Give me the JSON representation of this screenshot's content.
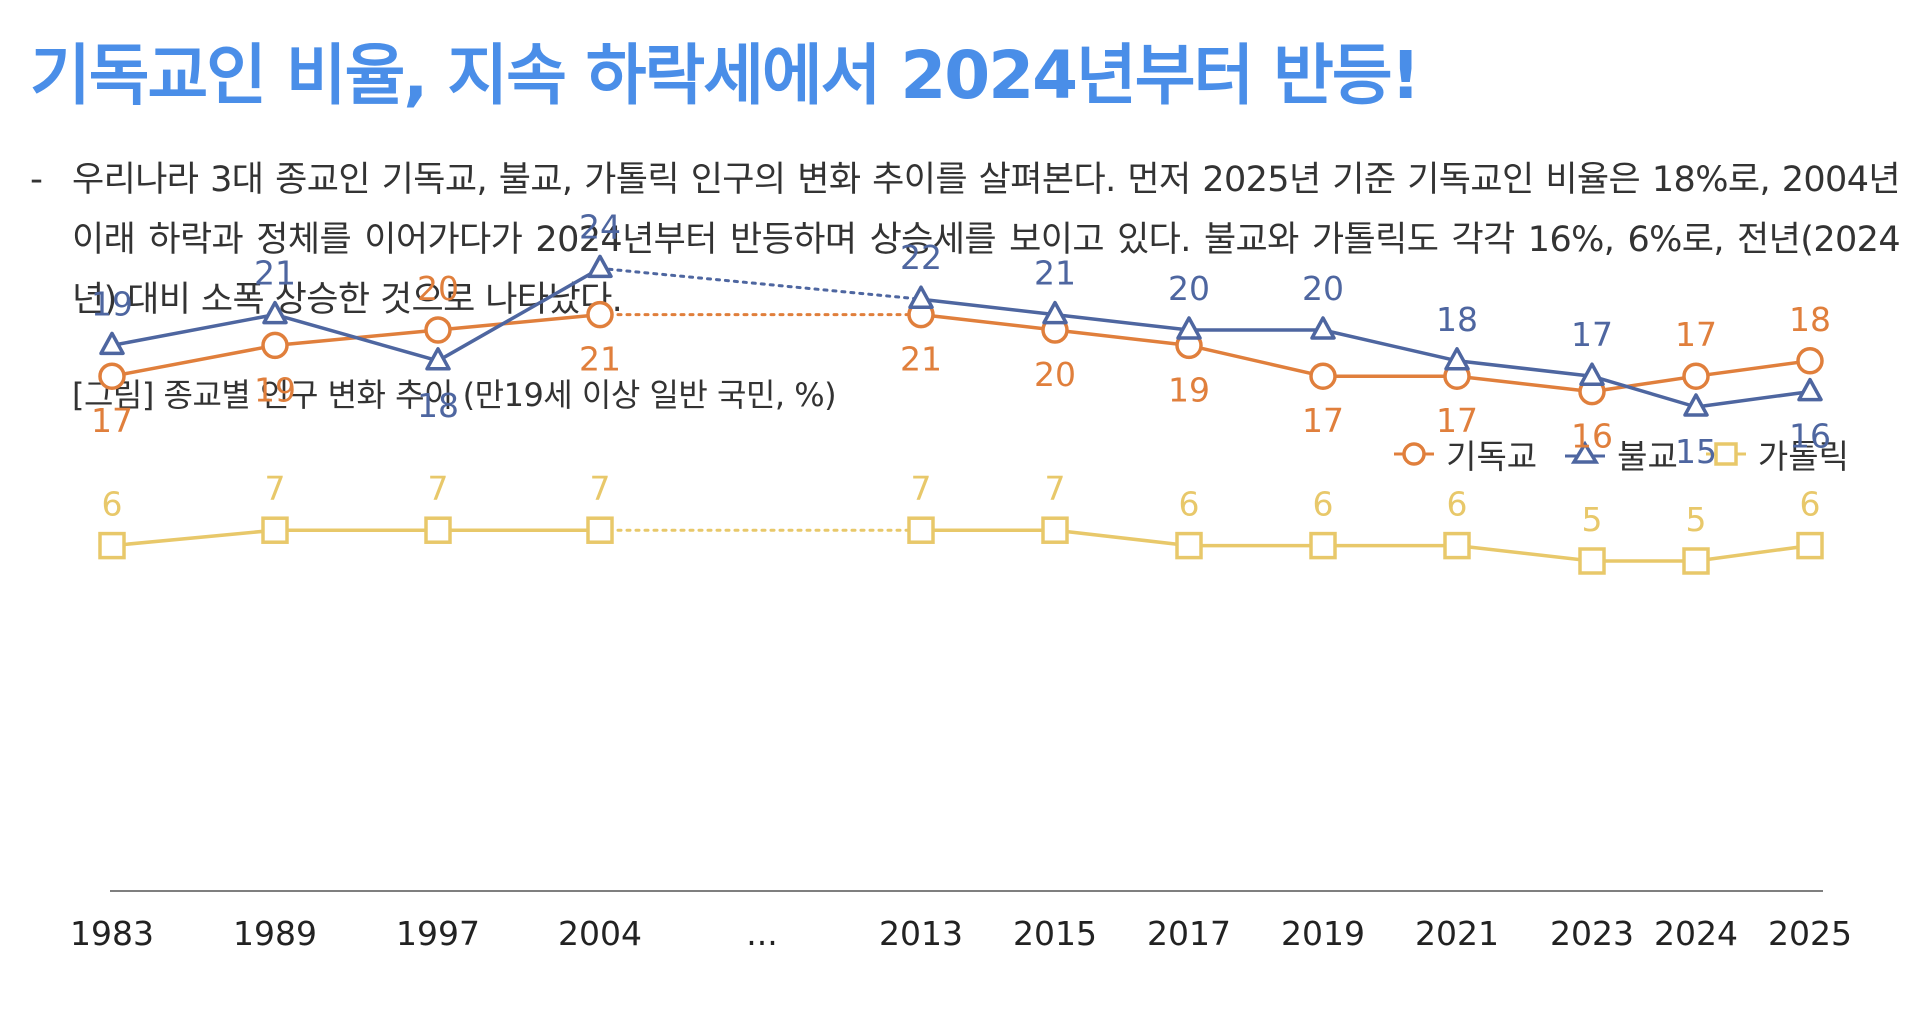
{
  "page": {
    "headline": "기독교인 비율, 지속 하락세에서 2024년부터 반등!",
    "bullet_dash": "-",
    "bullet_text": "우리나라 3대 종교인 기독교, 불교, 가톨릭 인구의 변화 추이를 살펴본다. 먼저 2025년 기준 기독교인 비율은 18%로, 2004년 이래 하락과 정체를 이어가다가 2024년부터 반등하며 상승세를 보이고 있다. 불교와 가톨릭도 각각 16%, 6%로, 전년(2024년) 대비 소폭 상승한 것으로 나타났다.",
    "figure_caption": "[그림] 종교별 인구 변화 추이 (만19세 이상 일반 국민, %)"
  },
  "chart_data": {
    "type": "line",
    "title": "",
    "xlabel": "",
    "ylabel": "",
    "categories": [
      "1983",
      "1989",
      "1997",
      "2004",
      "...",
      "2013",
      "2015",
      "2017",
      "2019",
      "2021",
      "2023",
      "2024",
      "2025"
    ],
    "ylim": [
      0,
      30
    ],
    "grid": false,
    "legend_position": "top-right",
    "gap_category": "...",
    "gap_style": "dotted",
    "series": [
      {
        "name": "기독교",
        "marker": "circle",
        "color": "#e07f3c",
        "values": [
          17,
          19,
          20,
          21,
          null,
          21,
          20,
          19,
          17,
          17,
          16,
          17,
          18
        ],
        "label_position": [
          "below",
          "below",
          "above",
          "below",
          null,
          "below",
          "below",
          "below",
          "below",
          "below",
          "below",
          "above",
          "above"
        ]
      },
      {
        "name": "불교",
        "marker": "triangle",
        "color": "#4e66a0",
        "values": [
          19,
          21,
          18,
          24,
          null,
          22,
          21,
          20,
          20,
          18,
          17,
          15,
          16
        ],
        "label_position": [
          "above",
          "above",
          "below",
          "above",
          null,
          "above",
          "above",
          "above",
          "above",
          "above",
          "above",
          "below",
          "below"
        ]
      },
      {
        "name": "가톨릭",
        "marker": "square",
        "color": "#e8c86a",
        "values": [
          6,
          7,
          7,
          7,
          null,
          7,
          7,
          6,
          6,
          6,
          5,
          5,
          6
        ],
        "label_position": [
          "above",
          "above",
          "above",
          "above",
          null,
          "above",
          "above",
          "above",
          "above",
          "above",
          "above",
          "above",
          "above"
        ]
      }
    ]
  }
}
